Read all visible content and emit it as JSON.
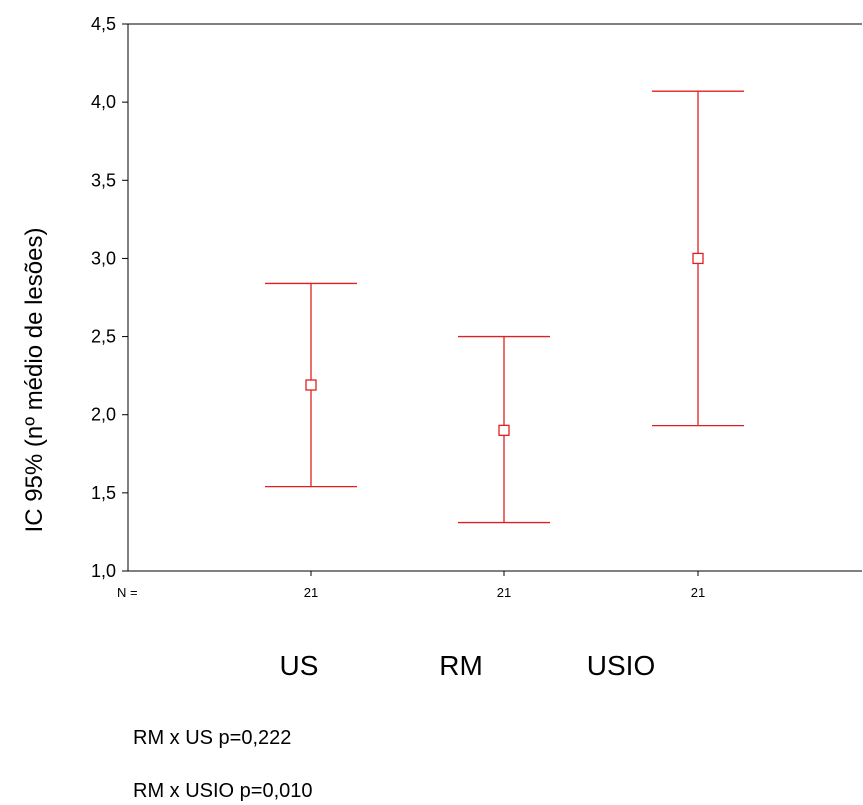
{
  "chart_data": {
    "type": "errorbar",
    "ylabel": "IC 95% (nº médio de lesões)",
    "ylim": [
      1.0,
      4.5
    ],
    "y_ticks": [
      "1,0",
      "1,5",
      "2,0",
      "2,5",
      "3,0",
      "3,5",
      "4,0",
      "4,5"
    ],
    "y_tick_values": [
      1.0,
      1.5,
      2.0,
      2.5,
      3.0,
      3.5,
      4.0,
      4.5
    ],
    "n_prefix": "N =",
    "categories": [
      "US",
      "RM",
      "USIO"
    ],
    "n": [
      "21",
      "21",
      "21"
    ],
    "mean": [
      2.19,
      1.9,
      3.0
    ],
    "lower": [
      1.54,
      1.31,
      1.93
    ],
    "upper": [
      2.84,
      2.5,
      4.07
    ],
    "color": "#e02020",
    "grid": false
  },
  "notes": [
    "RM x US p=0,222",
    "RM x USIO p=0,010"
  ]
}
